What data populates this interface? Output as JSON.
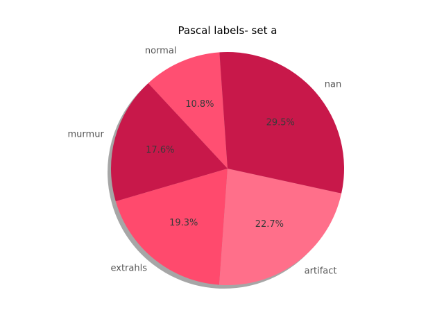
{
  "chart_data": {
    "type": "pie",
    "title": "Pascal labels- set a",
    "categories": [
      "normal",
      "murmur",
      "extrahls",
      "artifact",
      "nan"
    ],
    "values": [
      10.8,
      17.6,
      19.3,
      22.7,
      29.5
    ],
    "percent_labels": [
      "10.8%",
      "17.6%",
      "19.3%",
      "22.7%",
      "29.5%"
    ],
    "colors": [
      "#ff4f72",
      "#c8184a",
      "#ff4a6d",
      "#ff6f8a",
      "#c8184a"
    ],
    "start_angle_deg": 94,
    "direction": "counterclockwise",
    "shadow": true,
    "legend": "none"
  }
}
